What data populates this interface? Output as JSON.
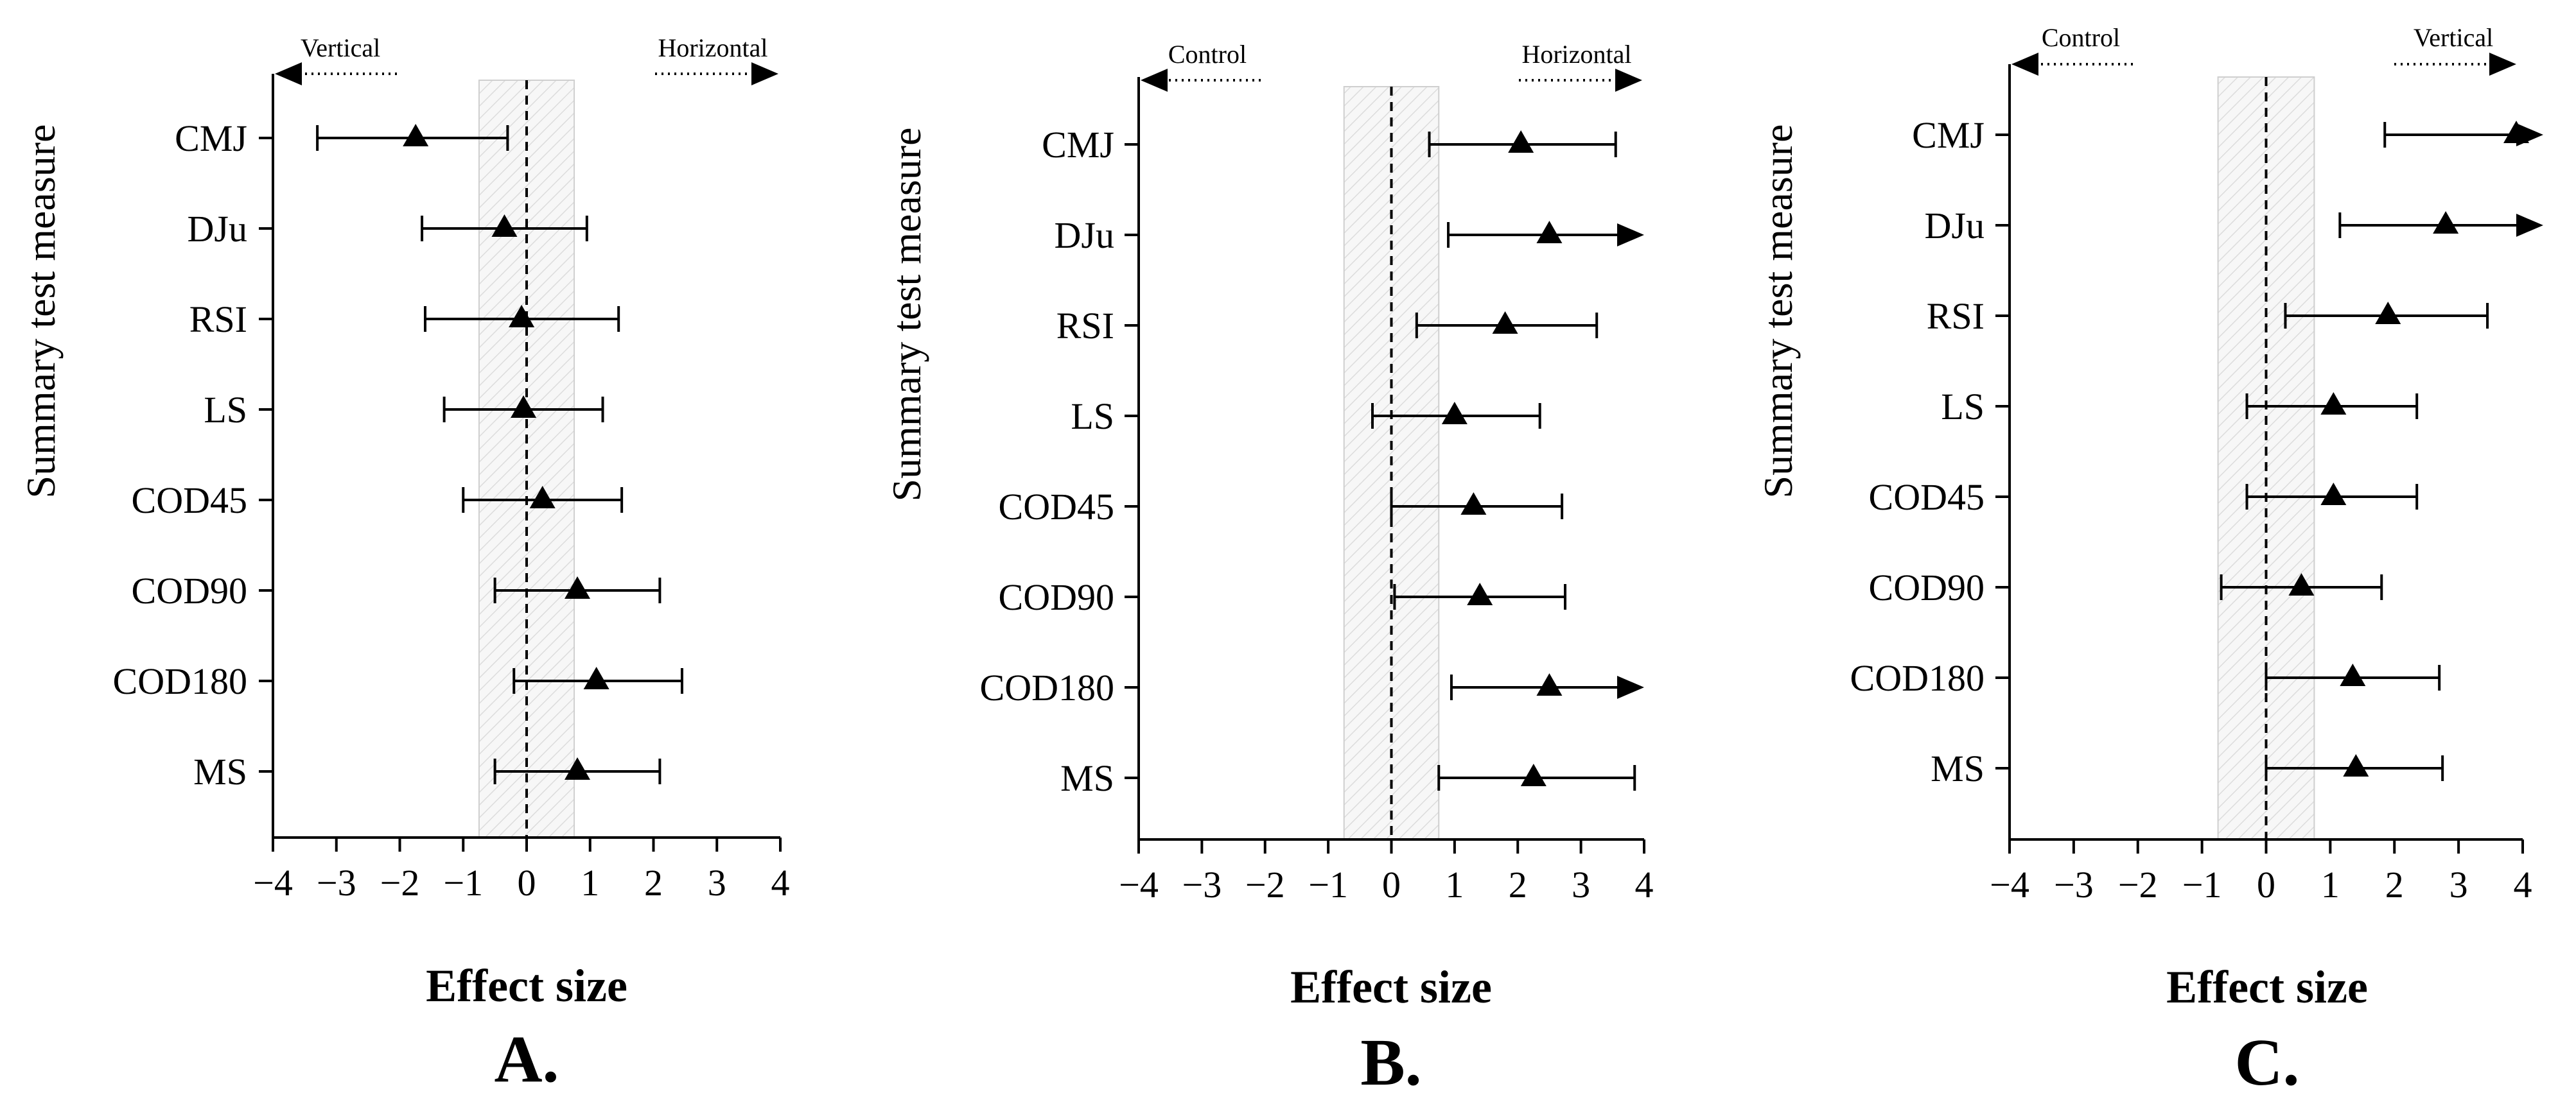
{
  "chart_data": [
    {
      "type": "forest",
      "panel": "A.",
      "ylabel": "Summary test measure",
      "xlabel": "Effect size",
      "xlim": [
        -4,
        4
      ],
      "xticks": [
        "−4",
        "−3",
        "−2",
        "−1",
        "0",
        "1",
        "2",
        "3",
        "4"
      ],
      "direction_left": "Vertical",
      "direction_right": "Horizontal",
      "shaded_region": [
        -0.75,
        0.75
      ],
      "categories": [
        "CMJ",
        "DJu",
        "RSI",
        "LS",
        "COD45",
        "COD90",
        "COD180",
        "MS"
      ],
      "estimates": [
        -1.75,
        -0.35,
        -0.08,
        -0.05,
        0.25,
        0.8,
        1.1,
        0.8
      ],
      "ci_lower": [
        -3.3,
        -1.65,
        -1.6,
        -1.3,
        -1.0,
        -0.5,
        -0.2,
        -0.5
      ],
      "ci_upper": [
        -0.3,
        0.95,
        1.45,
        1.2,
        1.5,
        2.1,
        2.45,
        2.1
      ],
      "ci_upper_arrow": [
        false,
        false,
        false,
        false,
        false,
        false,
        false,
        false
      ]
    },
    {
      "type": "forest",
      "panel": "B.",
      "ylabel": "Summary test measure",
      "xlabel": "Effect size",
      "xlim": [
        -4,
        4
      ],
      "xticks": [
        "−4",
        "−3",
        "−2",
        "−1",
        "0",
        "1",
        "2",
        "3",
        "4"
      ],
      "direction_left": "Control",
      "direction_right": "Horizontal",
      "shaded_region": [
        -0.75,
        0.75
      ],
      "categories": [
        "CMJ",
        "DJu",
        "RSI",
        "LS",
        "COD45",
        "COD90",
        "COD180",
        "MS"
      ],
      "estimates": [
        2.05,
        2.5,
        1.8,
        1.0,
        1.3,
        1.4,
        2.5,
        2.25
      ],
      "ci_lower": [
        0.6,
        0.9,
        0.4,
        -0.3,
        0.0,
        0.05,
        0.95,
        0.75
      ],
      "ci_upper": [
        3.55,
        4.0,
        3.25,
        2.35,
        2.7,
        2.75,
        4.0,
        3.85
      ],
      "ci_upper_arrow": [
        false,
        true,
        false,
        false,
        false,
        false,
        true,
        false
      ]
    },
    {
      "type": "forest",
      "panel": "C.",
      "ylabel": "Summary test measure",
      "xlabel": "Effect size",
      "xlim": [
        -4,
        4
      ],
      "xticks": [
        "−4",
        "−3",
        "−2",
        "−1",
        "0",
        "1",
        "2",
        "3",
        "4"
      ],
      "direction_left": "Control",
      "direction_right": "Vertical",
      "shaded_region": [
        -0.75,
        0.75
      ],
      "categories": [
        "CMJ",
        "DJu",
        "RSI",
        "LS",
        "COD45",
        "COD90",
        "COD180",
        "MS"
      ],
      "estimates": [
        3.9,
        2.8,
        1.9,
        1.05,
        1.05,
        0.55,
        1.35,
        1.4
      ],
      "ci_lower": [
        1.85,
        1.15,
        0.3,
        -0.3,
        -0.3,
        -0.7,
        0.0,
        0.0
      ],
      "ci_upper": [
        4.5,
        4.5,
        3.45,
        2.35,
        2.35,
        1.8,
        2.7,
        2.75
      ],
      "ci_upper_arrow": [
        true,
        true,
        false,
        false,
        false,
        false,
        false,
        false
      ]
    }
  ]
}
